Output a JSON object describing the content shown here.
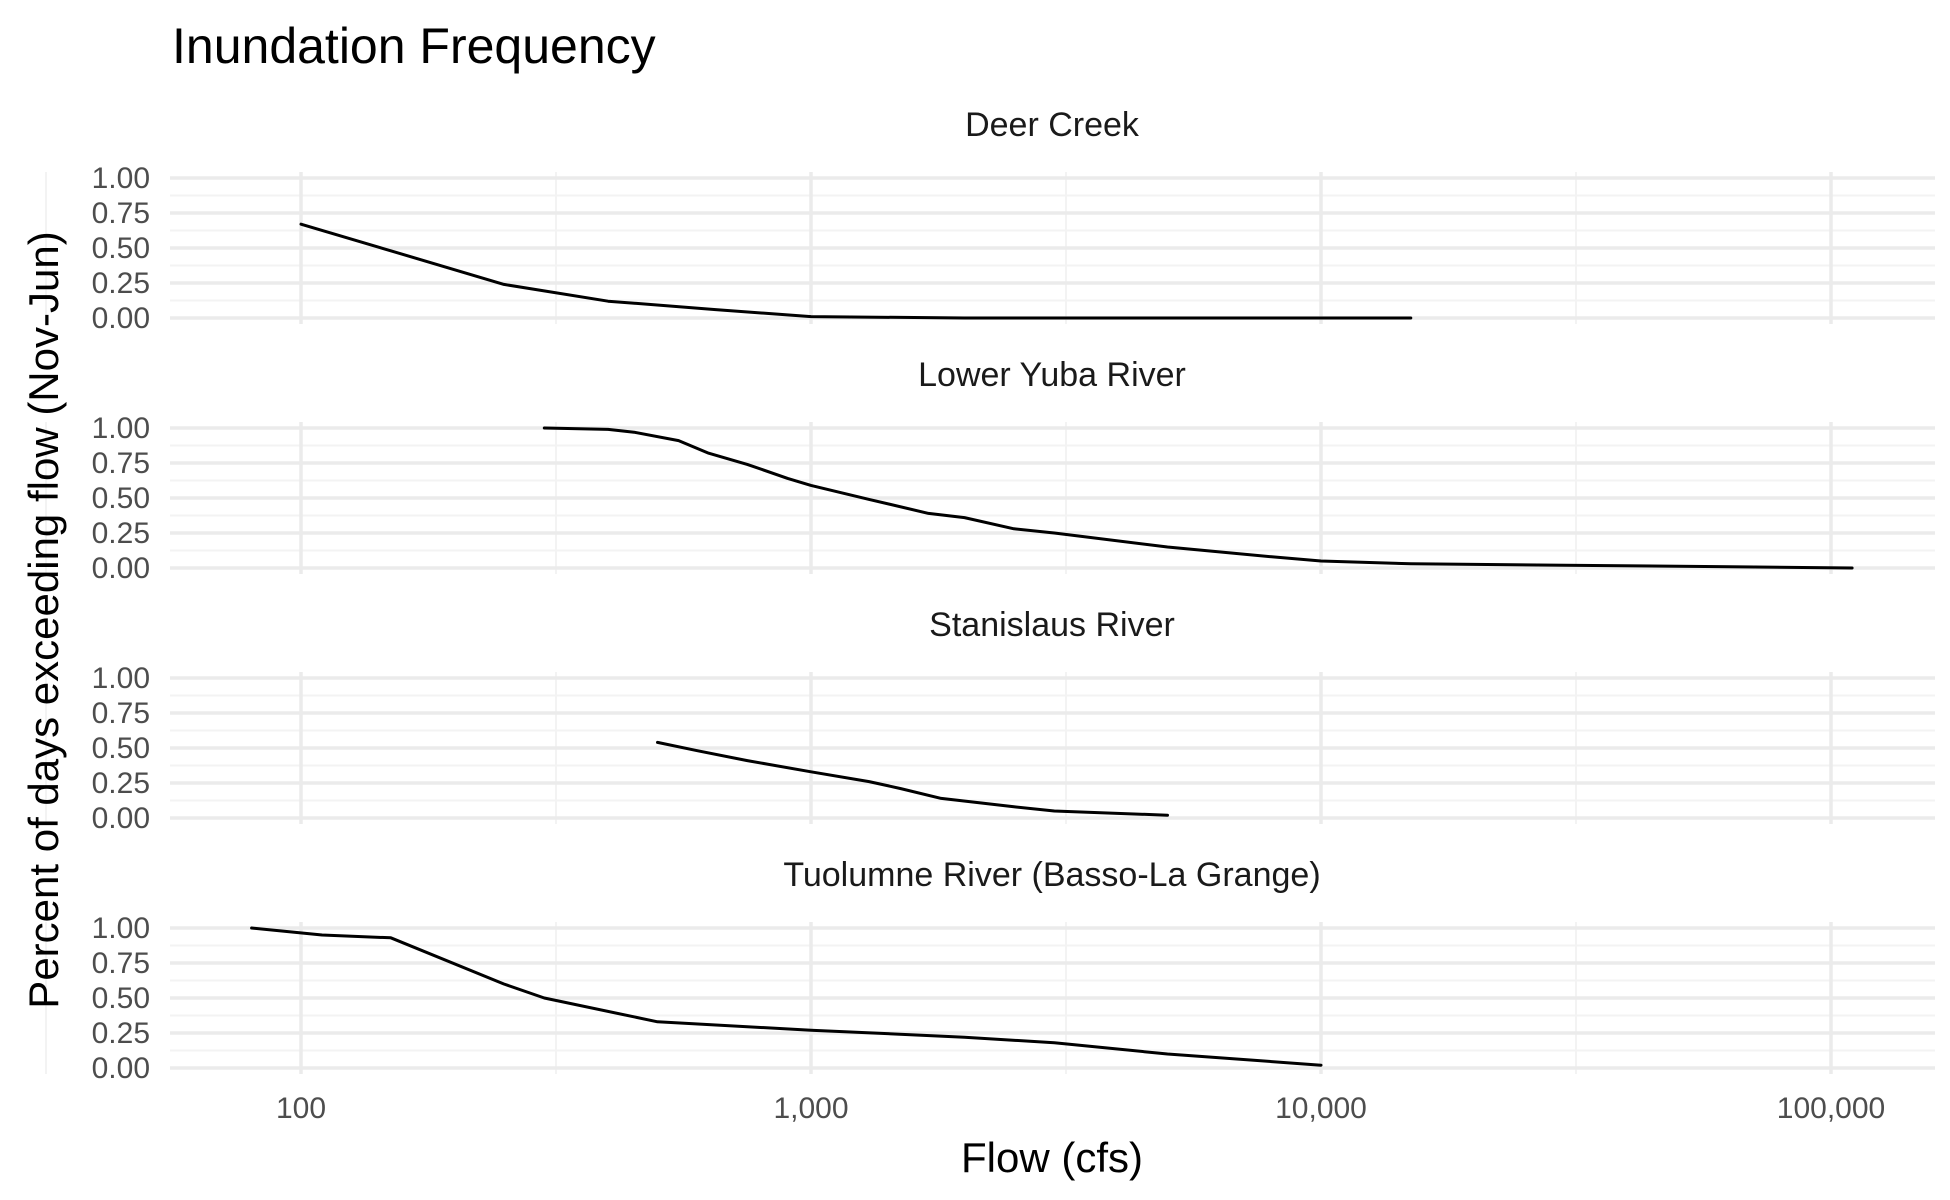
{
  "chart_data": {
    "type": "line",
    "title": "Inundation Frequency",
    "xlabel": "Flow (cfs)",
    "ylabel": "Percent of days exceeding flow (Nov-Jun)",
    "x_scale": "log10",
    "xlim": [
      60,
      150000
    ],
    "ylim": [
      0,
      1
    ],
    "x_ticks": [
      100,
      1000,
      10000,
      100000
    ],
    "x_tick_labels": [
      "100",
      "1,000",
      "10,000",
      "100,000"
    ],
    "y_ticks": [
      0,
      0.25,
      0.5,
      0.75,
      1
    ],
    "y_tick_labels": [
      "0.00",
      "0.25",
      "0.50",
      "0.75",
      "1.00"
    ],
    "grid": true,
    "line_color": "#000000",
    "panels": [
      {
        "name": "Deer Creek",
        "x": [
          100,
          150,
          250,
          400,
          650,
          1000,
          2000,
          5000,
          15000
        ],
        "y": [
          0.67,
          0.48,
          0.24,
          0.12,
          0.06,
          0.01,
          0.0,
          0.0,
          0.0
        ]
      },
      {
        "name": "Lower Yuba River",
        "x": [
          300,
          400,
          450,
          550,
          630,
          750,
          900,
          1000,
          1300,
          1700,
          2000,
          2500,
          3000,
          5000,
          8000,
          10000,
          15000,
          30000,
          60000,
          110000
        ],
        "y": [
          1.0,
          0.99,
          0.97,
          0.91,
          0.82,
          0.74,
          0.64,
          0.59,
          0.49,
          0.39,
          0.36,
          0.28,
          0.25,
          0.15,
          0.08,
          0.05,
          0.03,
          0.02,
          0.01,
          0.0
        ]
      },
      {
        "name": "Stanislaus River",
        "x": [
          500,
          600,
          750,
          1000,
          1300,
          1500,
          1800,
          2500,
          3000,
          5000
        ],
        "y": [
          0.54,
          0.48,
          0.41,
          0.33,
          0.26,
          0.21,
          0.14,
          0.08,
          0.05,
          0.02
        ]
      },
      {
        "name": "Tuolumne River (Basso-La Grange)",
        "x": [
          80,
          110,
          150,
          250,
          300,
          500,
          1000,
          2000,
          3000,
          5000,
          10000
        ],
        "y": [
          1.0,
          0.95,
          0.93,
          0.6,
          0.5,
          0.33,
          0.27,
          0.22,
          0.18,
          0.1,
          0.02
        ]
      }
    ]
  }
}
